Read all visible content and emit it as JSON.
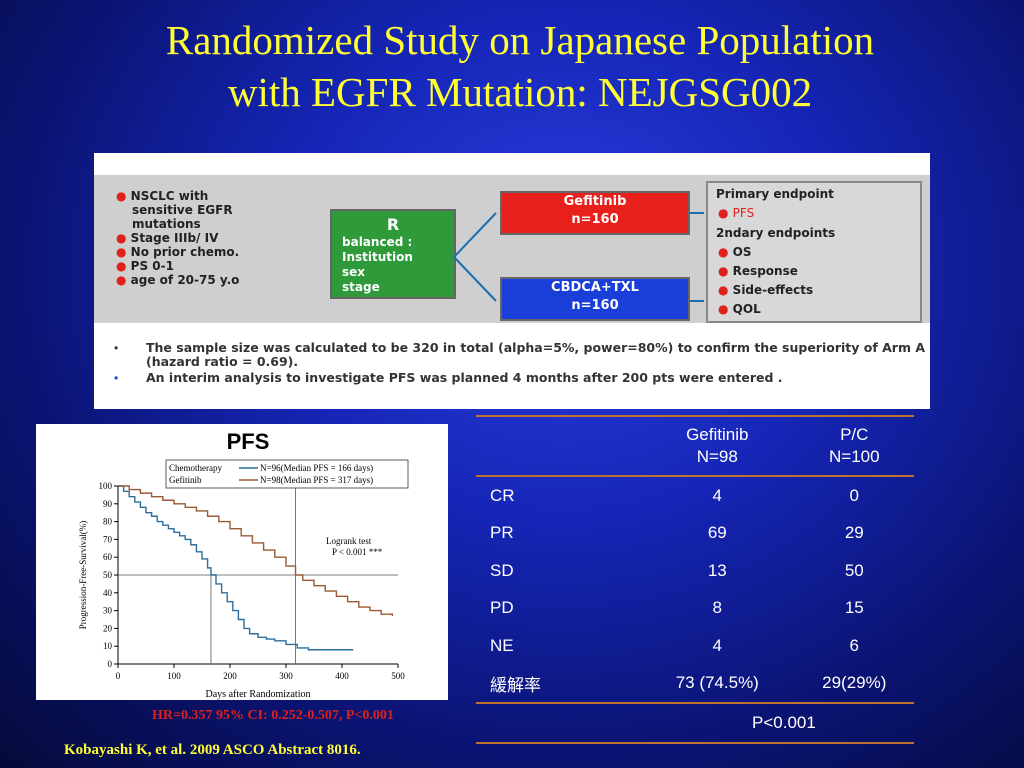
{
  "slide": {
    "title_line1": "Randomized Study on Japanese Population",
    "title_line2": "with EGFR Mutation: NEJGSG002"
  },
  "design": {
    "eligibility": [
      "NSCLC  with",
      "sensitive EGFR",
      "mutations",
      "Stage IIIb/ IV",
      "No prior chemo.",
      "PS 0-1",
      "age of 20-75 y.o"
    ],
    "randomization": {
      "label": "R",
      "lines": [
        "balanced :",
        "Institution",
        "sex",
        "stage"
      ]
    },
    "arm_a": {
      "name": "Gefitinib",
      "n": "n=160"
    },
    "arm_b": {
      "name": "CBDCA+TXL",
      "n": "n=160"
    },
    "endpoints": {
      "primary_header": "Primary endpoint",
      "primary": [
        "PFS"
      ],
      "secondary_header": "2ndary endpoints",
      "secondary": [
        "OS",
        "Response",
        "Side-effects",
        "QOL"
      ]
    },
    "notes": [
      "The sample size was calculated to be 320 in total (alpha=5%, power=80%) to confirm the superiority of Arm A (hazard ratio = 0.69).",
      "An  interim analysis to investigate PFS was planned 4 months after 200 pts were entered ."
    ],
    "colors": {
      "green": "#2e9a3a",
      "red": "#e8201b",
      "blue": "#1a3ed8"
    }
  },
  "chart_data": {
    "type": "line",
    "title": "PFS",
    "xlabel": "Days after Randomization",
    "ylabel": "Progression-Free-Survival(%)",
    "xlim": [
      0,
      500
    ],
    "ylim": [
      0,
      100
    ],
    "xticks": [
      0,
      100,
      200,
      300,
      400,
      500
    ],
    "yticks": [
      0,
      10,
      20,
      30,
      40,
      50,
      60,
      70,
      80,
      90,
      100
    ],
    "legend": [
      {
        "label": "Chemotherapy",
        "desc": "N=96(Median PFS = 166 days)",
        "color": "#2d6f9c"
      },
      {
        "label": "Gefitinib",
        "desc": "N=98(Median PFS = 317 days)",
        "color": "#9a5a36"
      }
    ],
    "annotation": {
      "line1": "Logrank test",
      "line2": "P < 0.001 ***"
    },
    "reference": {
      "y": 50,
      "x_chemo": 166,
      "x_gefitinib": 317
    },
    "series": [
      {
        "name": "Chemotherapy",
        "x": [
          0,
          10,
          20,
          30,
          40,
          50,
          60,
          70,
          80,
          90,
          100,
          110,
          120,
          130,
          140,
          150,
          160,
          166,
          175,
          185,
          195,
          205,
          215,
          225,
          235,
          250,
          265,
          280,
          300,
          320,
          340,
          360,
          390,
          420
        ],
        "y": [
          100,
          97,
          94,
          91,
          88,
          85,
          83,
          80,
          78,
          76,
          74,
          72,
          70,
          67,
          63,
          59,
          54,
          50,
          45,
          40,
          35,
          30,
          25,
          20,
          17,
          15,
          14,
          13,
          11,
          9,
          8,
          8,
          8,
          8
        ]
      },
      {
        "name": "Gefitinib",
        "x": [
          0,
          20,
          40,
          60,
          80,
          100,
          120,
          140,
          160,
          180,
          200,
          220,
          240,
          260,
          280,
          300,
          317,
          330,
          350,
          370,
          390,
          410,
          430,
          450,
          470,
          490
        ],
        "y": [
          100,
          98,
          96,
          94,
          92,
          90,
          88,
          86,
          83,
          80,
          76,
          72,
          68,
          64,
          60,
          55,
          50,
          47,
          44,
          41,
          38,
          35,
          32,
          30,
          28,
          27
        ]
      }
    ]
  },
  "results": {
    "headers": [
      {
        "line1": "Gefitinib",
        "line2": "N=98"
      },
      {
        "line1": "P/C",
        "line2": "N=100"
      }
    ],
    "rows": [
      {
        "label": "CR",
        "g": "4",
        "c": "0"
      },
      {
        "label": "PR",
        "g": "69",
        "c": "29"
      },
      {
        "label": "SD",
        "g": "13",
        "c": "50"
      },
      {
        "label": "PD",
        "g": "8",
        "c": "15"
      },
      {
        "label": "NE",
        "g": "4",
        "c": "6"
      },
      {
        "label": "緩解率",
        "g": "73 (74.5%)",
        "c": "29(29%)"
      }
    ],
    "pvalue": "P<0.001"
  },
  "footer": {
    "hr": "HR=0.357   95% CI: 0.252-0.507, P<0.001",
    "reference": "Kobayashi K, et al. 2009 ASCO Abstract 8016."
  }
}
